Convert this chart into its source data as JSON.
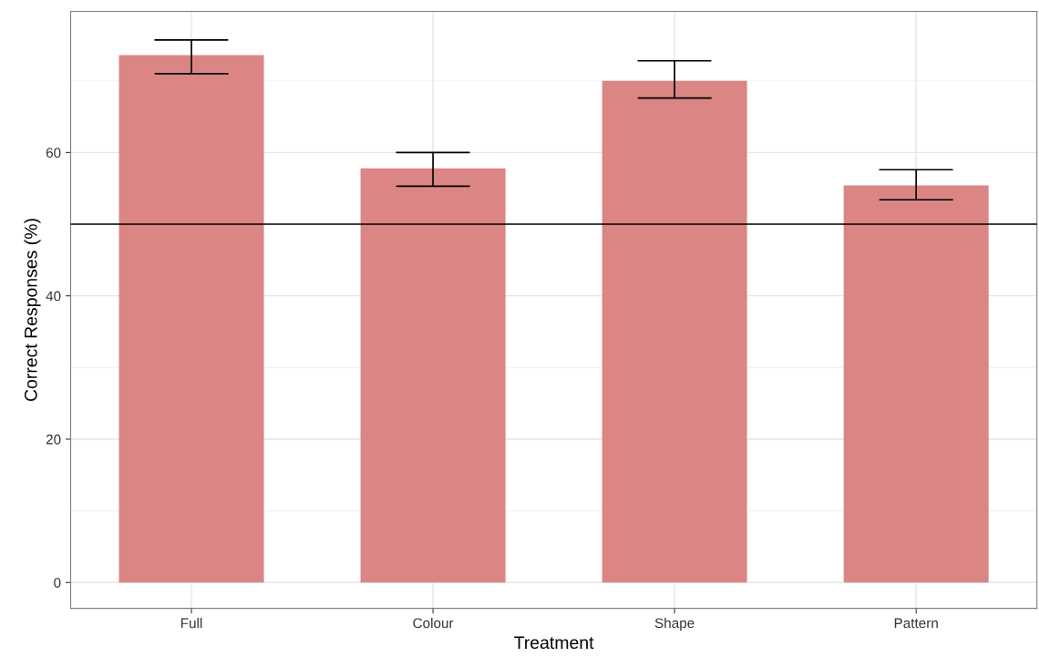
{
  "chart_data": {
    "type": "bar",
    "xlabel": "Treatment",
    "ylabel": "Correct Responses (%)",
    "categories": [
      "Full",
      "Colour",
      "Shape",
      "Pattern"
    ],
    "values": [
      73.6,
      57.8,
      70.0,
      55.4
    ],
    "errors": [
      [
        71.0,
        75.7
      ],
      [
        55.3,
        60.0
      ],
      [
        67.6,
        72.8
      ],
      [
        53.4,
        57.6
      ]
    ],
    "color": "#db8585",
    "ylim": [
      -3.6,
      79.7
    ],
    "yticks": [
      0,
      20,
      40,
      60
    ],
    "ref_lines": [
      {
        "axis": "y",
        "value": 50,
        "color": "#000000"
      }
    ],
    "grid": true
  }
}
